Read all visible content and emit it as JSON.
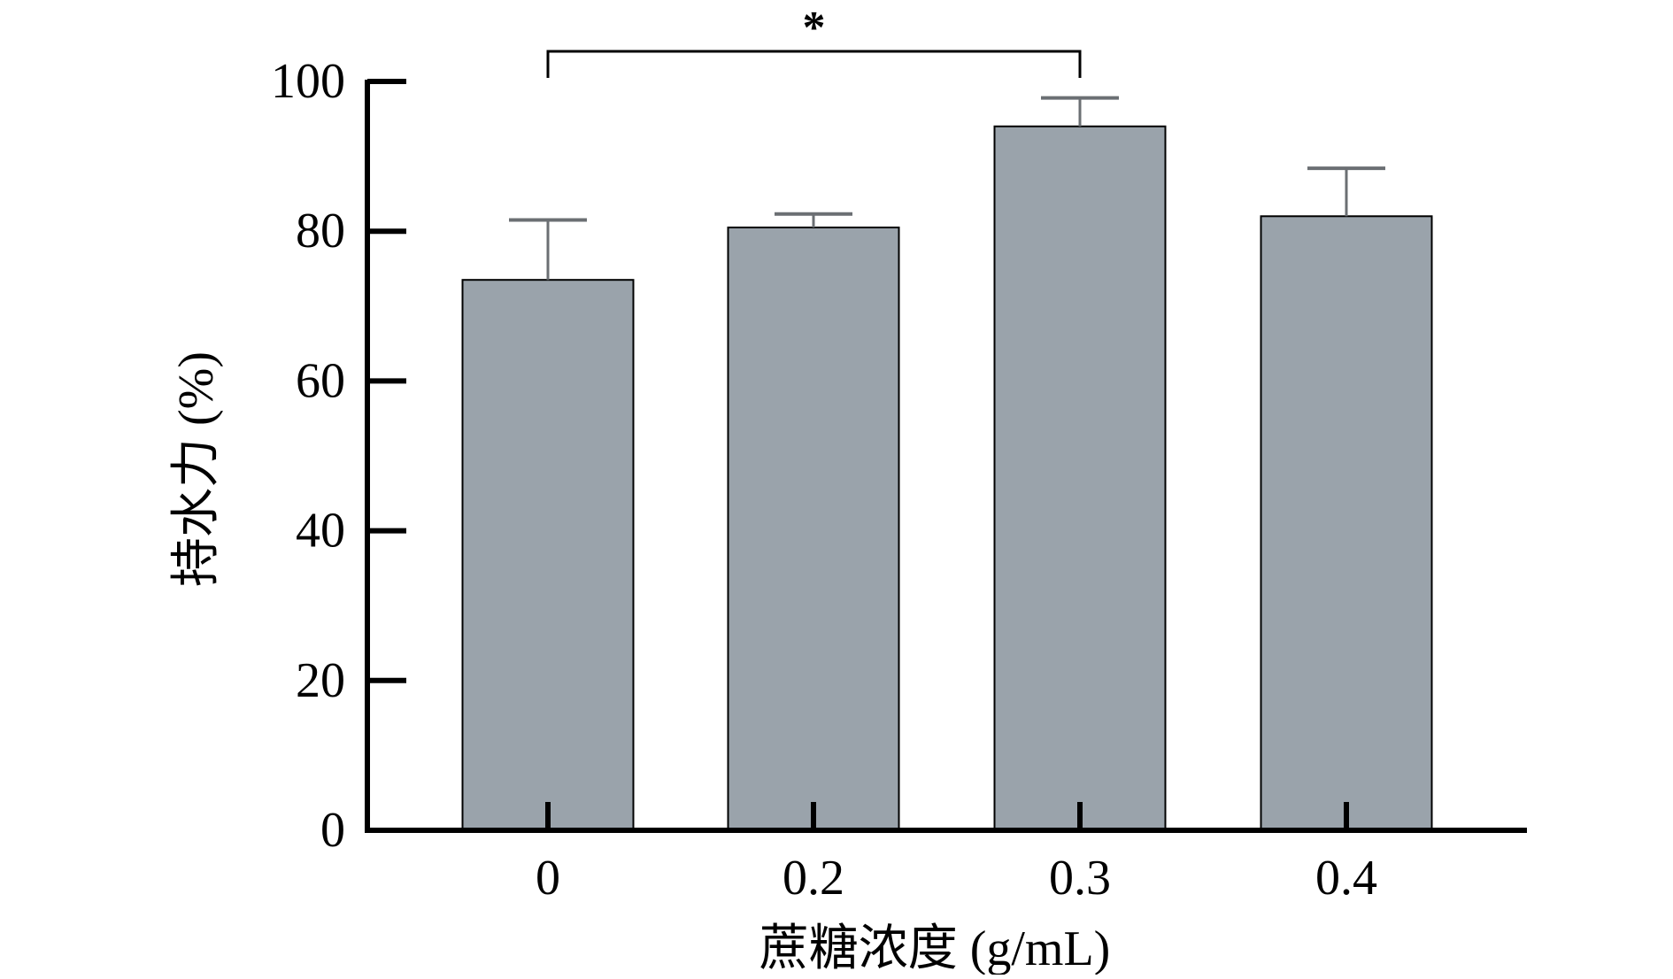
{
  "chart_data": {
    "type": "bar",
    "title": "",
    "xlabel": "蔗糖浓度 (g/mL)",
    "ylabel": "持水力 (%)",
    "categories": [
      "0",
      "0.2",
      "0.3",
      "0.4"
    ],
    "values": [
      73.5,
      80.5,
      94.0,
      82.0
    ],
    "error_upper": [
      8.0,
      1.8,
      3.8,
      6.4
    ],
    "ylim": [
      0,
      100
    ],
    "yticks": [
      0,
      20,
      40,
      60,
      80,
      100
    ],
    "ytick_labels": [
      "0",
      "20",
      "40",
      "60",
      "80",
      "100"
    ],
    "grid": false,
    "legend": "none",
    "bar_color": "#9aa3ab",
    "error_color": "#6b6f73",
    "significance": [
      {
        "from_category": "0",
        "to_category": "0.3",
        "label": "*"
      }
    ]
  }
}
